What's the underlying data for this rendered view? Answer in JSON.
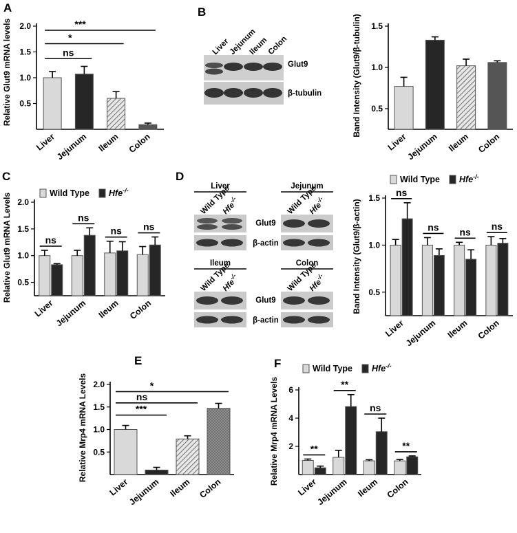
{
  "panel_labels": [
    "A",
    "B",
    "C",
    "D",
    "E",
    "F"
  ],
  "colors": {
    "light": "#d9d9d9",
    "dark": "#262626",
    "hatch": "#a0a0a0",
    "medium": "#555555",
    "crosshatch": "#8a8a8a"
  },
  "blot_B": {
    "lanes": [
      "Liver",
      "Jejunum",
      "Ileum",
      "Colon"
    ],
    "labels": [
      "Glut9",
      "β-tubulin"
    ]
  },
  "blot_D": {
    "groups": [
      "Liver",
      "Jejunum",
      "Ileum",
      "Colon"
    ],
    "lanes": [
      "Wild Type",
      "Hfe-/-"
    ],
    "labels": [
      "Glut9",
      "β-actin"
    ]
  },
  "chart_data": [
    {
      "panel": "A",
      "type": "bar",
      "categories": [
        "Liver",
        "Jejunum",
        "Ileum",
        "Colon"
      ],
      "values": [
        1.0,
        1.07,
        0.6,
        0.09
      ],
      "errors": [
        0.12,
        0.15,
        0.13,
        0.03
      ],
      "fills": [
        "light",
        "dark",
        "hatch",
        "medium"
      ],
      "ylabel": "Relative  Glut9 mRNA levels",
      "ylim": [
        0,
        2.0
      ],
      "yticks": [
        0.5,
        1.0,
        1.5,
        2.0
      ],
      "ytick_labels": [
        "0.5",
        "1.0",
        "1.5",
        "2.0"
      ],
      "brackets": [
        {
          "from": 0,
          "to": 1,
          "y": 1.37,
          "label": "ns"
        },
        {
          "from": 0,
          "to": 2,
          "y": 1.66,
          "label": "*"
        },
        {
          "from": 0,
          "to": 3,
          "y": 1.92,
          "label": "***"
        }
      ]
    },
    {
      "panel": "B",
      "type": "bar",
      "categories": [
        "Liver",
        "Jejunum",
        "Ileum",
        "Colon"
      ],
      "values": [
        0.77,
        1.33,
        1.02,
        1.06
      ],
      "errors": [
        0.11,
        0.04,
        0.08,
        0.02
      ],
      "fills": [
        "light",
        "dark",
        "hatch",
        "medium"
      ],
      "ylabel": "Band Intensity (Glut9/β-tubulin)",
      "ylim": [
        0.25,
        1.5
      ],
      "yticks": [
        0.5,
        1.0,
        1.5
      ],
      "ytick_labels": [
        "0.5",
        "1.0",
        "1.5"
      ],
      "brackets": []
    },
    {
      "panel": "C",
      "type": "bar",
      "categories": [
        "Liver",
        "Jejunum",
        "Ileum",
        "Colon"
      ],
      "series": [
        {
          "name": "Wild Type",
          "values": [
            1.0,
            1.0,
            1.05,
            1.02
          ],
          "errors": [
            0.1,
            0.1,
            0.22,
            0.15
          ]
        },
        {
          "name": "Hfe-/-",
          "values": [
            0.83,
            1.38,
            1.09,
            1.2
          ],
          "errors": [
            0.02,
            0.14,
            0.17,
            0.15
          ]
        }
      ],
      "ylabel": "Relative Glut9 mRNA Levels",
      "ylim": [
        0.25,
        2.0
      ],
      "yticks": [
        0.5,
        1.0,
        1.5,
        2.0
      ],
      "ytick_labels": [
        "0.5",
        "1.0",
        "1.5",
        "2.0"
      ],
      "sig_labels": [
        "ns",
        "ns",
        "ns",
        "ns"
      ]
    },
    {
      "panel": "D",
      "type": "bar",
      "categories": [
        "Liver",
        "Jejunum",
        "Ileum",
        "Colon"
      ],
      "series": [
        {
          "name": "Wild Type",
          "values": [
            1.0,
            1.0,
            1.0,
            1.0
          ],
          "errors": [
            0.06,
            0.08,
            0.03,
            0.09
          ]
        },
        {
          "name": "Hfe-/-",
          "values": [
            1.28,
            0.89,
            0.85,
            1.02
          ],
          "errors": [
            0.17,
            0.07,
            0.1,
            0.05
          ]
        }
      ],
      "ylabel": "Band Intensity (Glut9/β-actin)",
      "ylim": [
        0.25,
        1.5
      ],
      "yticks": [
        0.5,
        1.0,
        1.5
      ],
      "ytick_labels": [
        "0.5",
        "1.0",
        "1.5"
      ],
      "sig_labels": [
        "ns",
        "ns",
        "ns",
        "ns"
      ]
    },
    {
      "panel": "E",
      "type": "bar",
      "categories": [
        "Liver",
        "Jejunum",
        "Ileum",
        "Colon"
      ],
      "values": [
        1.0,
        0.1,
        0.79,
        1.47
      ],
      "errors": [
        0.09,
        0.06,
        0.07,
        0.11
      ],
      "fills": [
        "light",
        "dark",
        "hatch",
        "crosshatch"
      ],
      "ylabel": "Relative Mrp4 mRNA Levels",
      "ylim": [
        0,
        2.0
      ],
      "yticks": [
        0.5,
        1.0,
        1.5,
        2.0
      ],
      "ytick_labels": [
        "0.5",
        "1.0",
        "1.5",
        "2.0"
      ],
      "brackets": [
        {
          "from": 0,
          "to": 1,
          "y": 1.32,
          "label": "***"
        },
        {
          "from": 0,
          "to": 2,
          "y": 1.59,
          "label": "ns"
        },
        {
          "from": 0,
          "to": 3,
          "y": 1.84,
          "label": "*"
        }
      ]
    },
    {
      "panel": "F",
      "type": "bar",
      "categories": [
        "Liver",
        "Jejunum",
        "Ileum",
        "Colon"
      ],
      "series": [
        {
          "name": "Wild Type",
          "values": [
            1.0,
            1.22,
            0.97,
            0.97
          ],
          "errors": [
            0.1,
            0.5,
            0.08,
            0.1
          ]
        },
        {
          "name": "Hfe-/-",
          "values": [
            0.48,
            4.82,
            3.04,
            1.26
          ],
          "errors": [
            0.12,
            0.85,
            0.96,
            0.06
          ]
        }
      ],
      "ylabel": "Relative Mrp4 mRNA Levels",
      "ylim": [
        0,
        6
      ],
      "yticks": [
        2,
        4,
        6
      ],
      "ytick_labels": [
        "2",
        "4",
        "6"
      ],
      "sig_labels": [
        "**",
        "**",
        "ns",
        "**"
      ]
    }
  ]
}
